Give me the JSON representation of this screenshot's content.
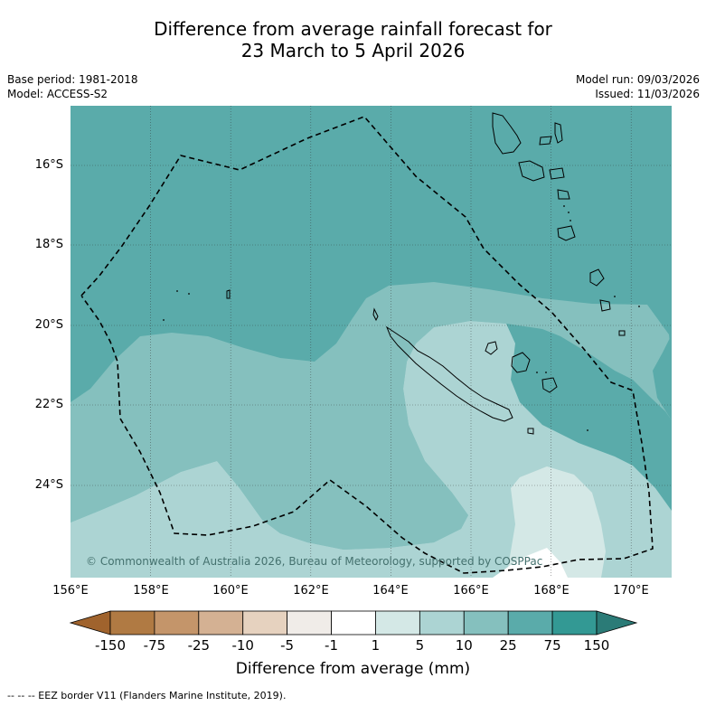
{
  "title": {
    "line1": "Difference from average rainfall forecast for",
    "line2": "23 March to 5 April 2026"
  },
  "meta": {
    "base_period": "Base period: 1981-2018",
    "model": "Model: ACCESS-S2",
    "model_run": "Model run: 09/03/2026",
    "issued": "Issued: 11/03/2026"
  },
  "copyright": "© Commonwealth of Australia 2026, Bureau of Meteorology, supported by COSPPac",
  "axes": {
    "lat_labels": [
      "16°S",
      "18°S",
      "20°S",
      "22°S",
      "24°S"
    ],
    "lon_labels": [
      "156°E",
      "158°E",
      "160°E",
      "162°E",
      "164°E",
      "166°E",
      "168°E",
      "170°E"
    ]
  },
  "colorbar": {
    "ticks": [
      "-150",
      "-75",
      "-25",
      "-10",
      "-5",
      "-1",
      "1",
      "5",
      "10",
      "25",
      "75",
      "150"
    ],
    "colors": [
      "#a0632d",
      "#b07a43",
      "#c4956a",
      "#d4b193",
      "#e6d2bf",
      "#f0ece8",
      "#ffffff",
      "#d4e8e6",
      "#acd4d3",
      "#85c0be",
      "#5aabaa",
      "#339994",
      "#2b7b77"
    ],
    "title": "Difference from average (mm)"
  },
  "footer": "--  --  -- EEZ border V11 (Flanders Marine Institute, 2019)."
}
